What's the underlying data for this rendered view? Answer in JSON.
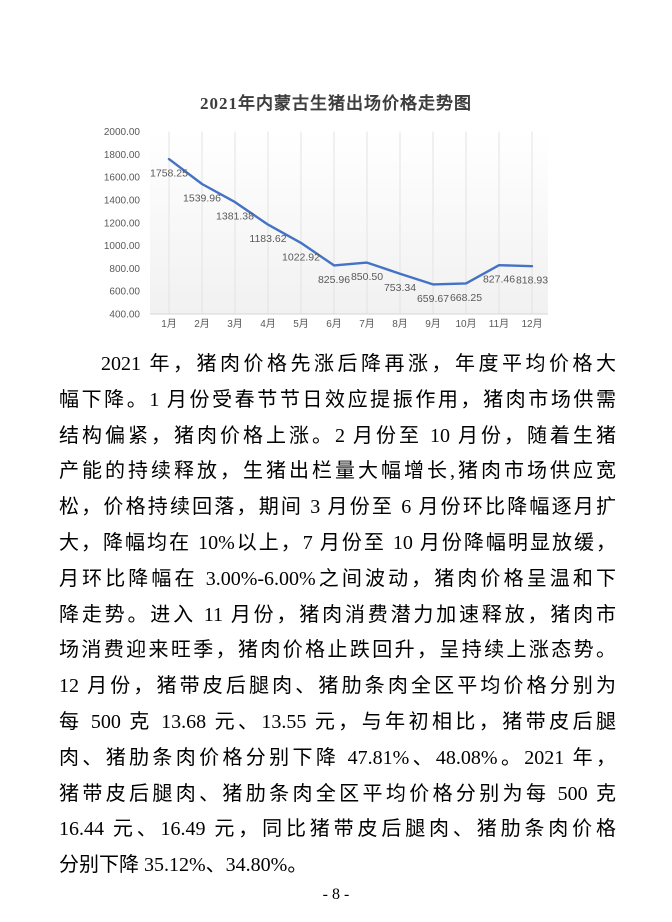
{
  "chart": {
    "title": "2021年内蒙古生猪出场价格走势图"
  },
  "chart_data": {
    "type": "line",
    "title": "2021年内蒙古生猪出场价格走势图",
    "categories": [
      "1月",
      "2月",
      "3月",
      "4月",
      "5月",
      "6月",
      "7月",
      "8月",
      "9月",
      "10月",
      "11月",
      "12月"
    ],
    "values": [
      1758.25,
      1539.96,
      1381.38,
      1183.62,
      1022.92,
      825.96,
      850.5,
      753.34,
      659.67,
      668.25,
      827.46,
      818.93
    ],
    "ylim": [
      400,
      2000
    ],
    "ytick_step": 200,
    "ytick_labels": [
      "2000.00",
      "1800.00",
      "1600.00",
      "1400.00",
      "1200.00",
      "1000.00",
      "800.00",
      "600.00",
      "400.00"
    ],
    "data_labels_visible": true,
    "grid": "vertical-only",
    "legend": "none",
    "line_color": "#4472C4",
    "label_color": "#595959",
    "axis_text_color": "#595959",
    "gridline_color": "#e3e3e3",
    "axis_line_color": "#d6d6d6"
  },
  "body": {
    "lines": [
      "2021 年，猪肉价格先涨后降再涨，年度平均价格大",
      "幅下降。1 月份受春节节日效应提振作用，猪肉市场供需",
      "结构偏紧，猪肉价格上涨。2 月份至 10 月份，随着生猪",
      "产能的持续释放，生猪出栏量大幅增长,猪肉市场供应宽",
      "松，价格持续回落，期间 3 月份至 6 月份环比降幅逐月扩",
      "大，降幅均在 10%以上，7 月份至 10 月份降幅明显放缓，",
      "月环比降幅在 3.00%-6.00%之间波动，猪肉价格呈温和下",
      "降走势。进入 11 月份，猪肉消费潜力加速释放，猪肉市",
      "场消费迎来旺季，猪肉价格止跌回升，呈持续上涨态势。",
      "12 月份，猪带皮后腿肉、猪肋条肉全区平均价格分别为",
      "每 500 克 13.68 元、13.55 元，与年初相比，猪带皮后腿",
      "肉、猪肋条肉价格分别下降 47.81%、48.08%。2021 年，",
      "猪带皮后腿肉、猪肋条肉全区平均价格分别为每 500 克",
      "16.44 元、16.49 元，同比猪带皮后腿肉、猪肋条肉价格",
      "分别下降 35.12%、34.80%。"
    ]
  },
  "footer": {
    "page_number": "- 8 -"
  }
}
